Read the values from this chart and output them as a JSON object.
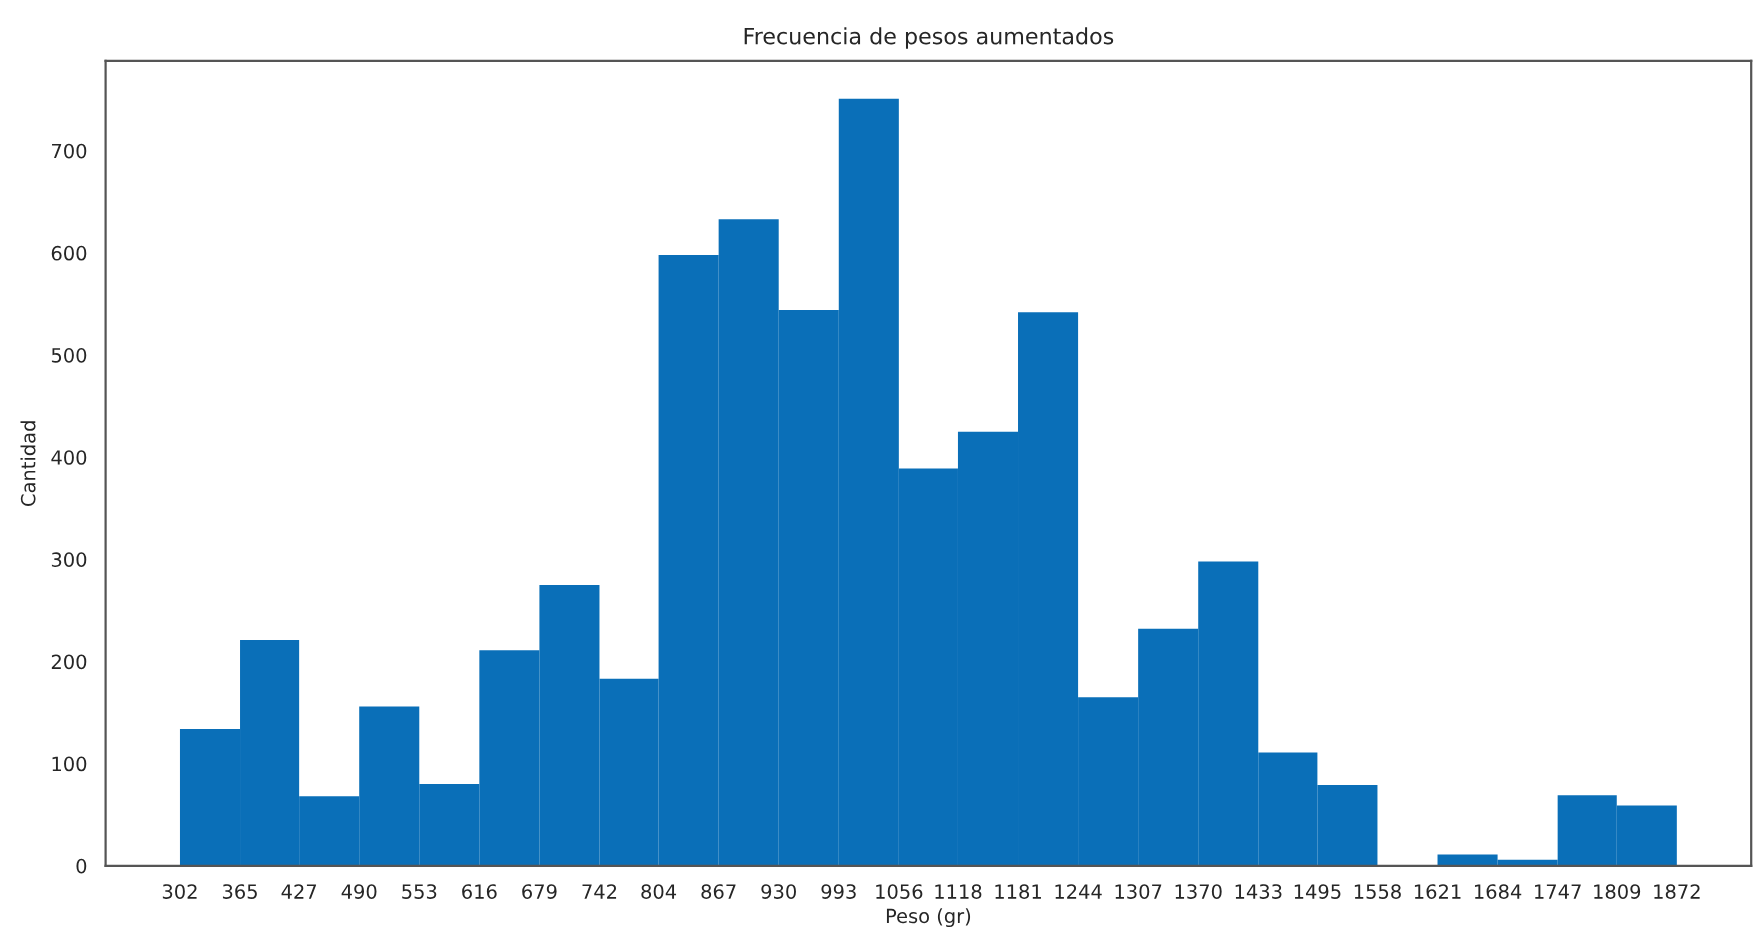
{
  "chart_data": {
    "type": "histogram",
    "title": "Frecuencia de pesos aumentados",
    "xlabel": "Peso (gr)",
    "ylabel": "Cantidad",
    "bins": [
      302,
      365,
      427,
      490,
      553,
      616,
      679,
      742,
      804,
      867,
      930,
      993,
      1056,
      1118,
      1181,
      1244,
      1307,
      1370,
      1433,
      1495,
      1558,
      1621,
      1684,
      1747,
      1809,
      1872
    ],
    "values": [
      134,
      221,
      68,
      156,
      80,
      211,
      275,
      183,
      598,
      633,
      544,
      751,
      389,
      425,
      542,
      165,
      232,
      298,
      111,
      79,
      0,
      11,
      6,
      69,
      59
    ],
    "color": "#0a6fb8",
    "xlim": [
      224,
      1950
    ],
    "ylim": [
      0,
      788
    ],
    "xticks": [
      302,
      365,
      427,
      490,
      553,
      616,
      679,
      742,
      804,
      867,
      930,
      993,
      1056,
      1118,
      1181,
      1244,
      1307,
      1370,
      1433,
      1495,
      1558,
      1621,
      1684,
      1747,
      1809,
      1872
    ],
    "yticks": [
      0,
      100,
      200,
      300,
      400,
      500,
      600,
      700
    ],
    "grid": false
  }
}
